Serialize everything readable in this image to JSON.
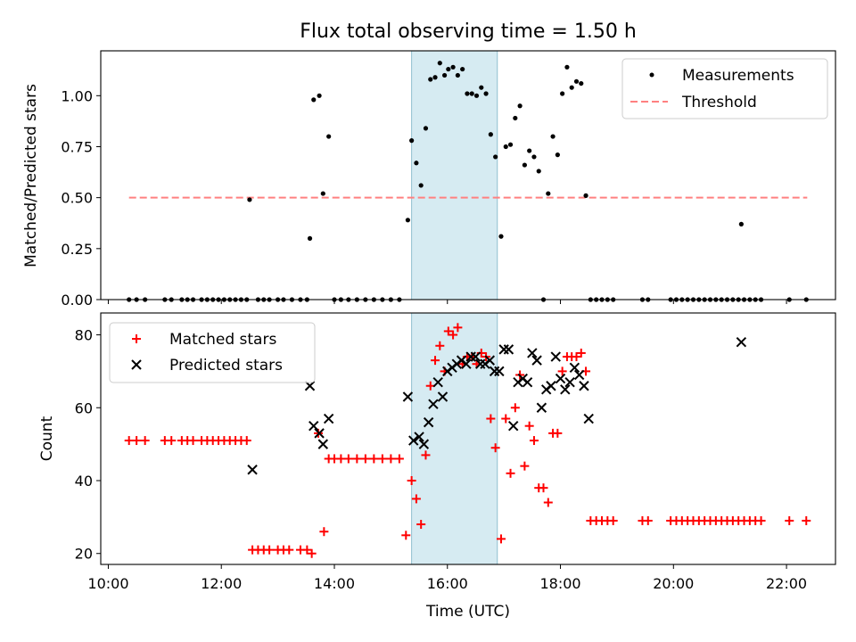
{
  "chart_data": [
    {
      "type": "scatter",
      "title": "Flux total observing time = 1.50 h",
      "xlabel": "",
      "ylabel": "Matched/Predicted stars",
      "xlim": [
        "09:52",
        "22:52"
      ],
      "ylim": [
        0,
        1.22
      ],
      "yticks": [
        "0.00",
        "0.25",
        "0.50",
        "0.75",
        "1.00"
      ],
      "shaded_span": {
        "start": "15:22",
        "end": "16:53",
        "color": "#add8e6"
      },
      "legend": {
        "position": "top-right",
        "entries": [
          "Measurements",
          "Threshold"
        ]
      },
      "threshold": {
        "name": "Threshold",
        "y": 0.5,
        "x_start": "10:22",
        "x_end": "22:22",
        "color": "#ff8080"
      },
      "series": [
        {
          "name": "Measurements",
          "color": "#000000",
          "marker": "dot",
          "points": [
            [
              "10:22",
              0
            ],
            [
              "10:30",
              0
            ],
            [
              "10:39",
              0
            ],
            [
              "11:00",
              0
            ],
            [
              "11:07",
              0
            ],
            [
              "11:18",
              0
            ],
            [
              "11:24",
              0
            ],
            [
              "11:30",
              0
            ],
            [
              "11:39",
              0
            ],
            [
              "11:45",
              0
            ],
            [
              "11:51",
              0
            ],
            [
              "11:57",
              0
            ],
            [
              "12:03",
              0
            ],
            [
              "12:09",
              0
            ],
            [
              "12:15",
              0
            ],
            [
              "12:21",
              0
            ],
            [
              "12:27",
              0
            ],
            [
              "12:30",
              0.49
            ],
            [
              "12:39",
              0
            ],
            [
              "12:45",
              0
            ],
            [
              "12:51",
              0
            ],
            [
              "13:00",
              0
            ],
            [
              "13:06",
              0
            ],
            [
              "13:15",
              0
            ],
            [
              "13:24",
              0
            ],
            [
              "13:31",
              0
            ],
            [
              "13:34",
              0.3
            ],
            [
              "13:38",
              0.98
            ],
            [
              "13:44",
              1.0
            ],
            [
              "13:48",
              0.52
            ],
            [
              "13:54",
              0.8
            ],
            [
              "14:00",
              0
            ],
            [
              "14:07",
              0
            ],
            [
              "14:15",
              0
            ],
            [
              "14:24",
              0
            ],
            [
              "14:33",
              0
            ],
            [
              "14:42",
              0
            ],
            [
              "14:51",
              0
            ],
            [
              "15:00",
              0
            ],
            [
              "15:09",
              0
            ],
            [
              "15:18",
              0.39
            ],
            [
              "15:22",
              0.78
            ],
            [
              "15:27",
              0.67
            ],
            [
              "15:32",
              0.56
            ],
            [
              "15:37",
              0.84
            ],
            [
              "15:42",
              1.08
            ],
            [
              "15:47",
              1.09
            ],
            [
              "15:52",
              1.16
            ],
            [
              "15:57",
              1.1
            ],
            [
              "16:01",
              1.13
            ],
            [
              "16:06",
              1.14
            ],
            [
              "16:11",
              1.1
            ],
            [
              "16:16",
              1.13
            ],
            [
              "16:21",
              1.01
            ],
            [
              "16:26",
              1.01
            ],
            [
              "16:31",
              1.0
            ],
            [
              "16:36",
              1.04
            ],
            [
              "16:41",
              1.01
            ],
            [
              "16:46",
              0.81
            ],
            [
              "16:51",
              0.7
            ],
            [
              "16:57",
              0.31
            ],
            [
              "17:02",
              0.75
            ],
            [
              "17:07",
              0.76
            ],
            [
              "17:12",
              0.89
            ],
            [
              "17:17",
              0.95
            ],
            [
              "17:22",
              0.66
            ],
            [
              "17:27",
              0.73
            ],
            [
              "17:32",
              0.7
            ],
            [
              "17:37",
              0.63
            ],
            [
              "17:42",
              0
            ],
            [
              "17:47",
              0.52
            ],
            [
              "17:52",
              0.8
            ],
            [
              "17:57",
              0.71
            ],
            [
              "18:02",
              1.01
            ],
            [
              "18:07",
              1.14
            ],
            [
              "18:12",
              1.04
            ],
            [
              "18:17",
              1.07
            ],
            [
              "18:22",
              1.06
            ],
            [
              "18:27",
              0.51
            ],
            [
              "18:32",
              0
            ],
            [
              "18:38",
              0
            ],
            [
              "18:44",
              0
            ],
            [
              "18:50",
              0
            ],
            [
              "18:56",
              0
            ],
            [
              "19:27",
              0
            ],
            [
              "19:33",
              0
            ],
            [
              "19:57",
              0
            ],
            [
              "20:03",
              0
            ],
            [
              "20:09",
              0
            ],
            [
              "20:15",
              0
            ],
            [
              "20:21",
              0
            ],
            [
              "20:27",
              0
            ],
            [
              "20:33",
              0
            ],
            [
              "20:39",
              0
            ],
            [
              "20:45",
              0
            ],
            [
              "20:51",
              0
            ],
            [
              "20:57",
              0
            ],
            [
              "21:03",
              0
            ],
            [
              "21:09",
              0
            ],
            [
              "21:12",
              0.37
            ],
            [
              "21:15",
              0
            ],
            [
              "21:21",
              0
            ],
            [
              "21:27",
              0
            ],
            [
              "21:33",
              0
            ],
            [
              "22:03",
              0
            ],
            [
              "22:21",
              0
            ]
          ]
        }
      ]
    },
    {
      "type": "scatter",
      "title": "",
      "xlabel": "Time (UTC)",
      "ylabel": "Count",
      "xlim": [
        "09:52",
        "22:52"
      ],
      "ylim": [
        17,
        86
      ],
      "xticks": [
        "10:00",
        "12:00",
        "14:00",
        "16:00",
        "18:00",
        "20:00",
        "22:00"
      ],
      "yticks": [
        "20",
        "40",
        "60",
        "80"
      ],
      "shaded_span": {
        "start": "15:22",
        "end": "16:53",
        "color": "#add8e6"
      },
      "legend": {
        "position": "top-left",
        "entries": [
          "Matched stars",
          "Predicted stars"
        ]
      },
      "series": [
        {
          "name": "Matched stars",
          "color": "#ff0000",
          "marker": "plus",
          "points": [
            [
              "10:22",
              51
            ],
            [
              "10:30",
              51
            ],
            [
              "10:39",
              51
            ],
            [
              "11:00",
              51
            ],
            [
              "11:07",
              51
            ],
            [
              "11:18",
              51
            ],
            [
              "11:24",
              51
            ],
            [
              "11:30",
              51
            ],
            [
              "11:39",
              51
            ],
            [
              "11:45",
              51
            ],
            [
              "11:51",
              51
            ],
            [
              "11:57",
              51
            ],
            [
              "12:03",
              51
            ],
            [
              "12:09",
              51
            ],
            [
              "12:15",
              51
            ],
            [
              "12:21",
              51
            ],
            [
              "12:27",
              51
            ],
            [
              "12:33",
              21
            ],
            [
              "12:39",
              21
            ],
            [
              "12:45",
              21
            ],
            [
              "12:51",
              21
            ],
            [
              "13:00",
              21
            ],
            [
              "13:06",
              21
            ],
            [
              "13:12",
              21
            ],
            [
              "13:24",
              21
            ],
            [
              "13:31",
              21
            ],
            [
              "13:36",
              20
            ],
            [
              "13:43",
              53
            ],
            [
              "13:49",
              26
            ],
            [
              "13:54",
              46
            ],
            [
              "14:00",
              46
            ],
            [
              "14:07",
              46
            ],
            [
              "14:15",
              46
            ],
            [
              "14:24",
              46
            ],
            [
              "14:33",
              46
            ],
            [
              "14:42",
              46
            ],
            [
              "14:51",
              46
            ],
            [
              "15:00",
              46
            ],
            [
              "15:09",
              46
            ],
            [
              "15:16",
              25
            ],
            [
              "15:22",
              40
            ],
            [
              "15:27",
              35
            ],
            [
              "15:32",
              28
            ],
            [
              "15:37",
              47
            ],
            [
              "15:42",
              66
            ],
            [
              "15:47",
              73
            ],
            [
              "15:52",
              77
            ],
            [
              "15:57",
              70
            ],
            [
              "16:01",
              81
            ],
            [
              "16:06",
              80
            ],
            [
              "16:11",
              82
            ],
            [
              "16:16",
              72
            ],
            [
              "16:21",
              74
            ],
            [
              "16:26",
              74
            ],
            [
              "16:31",
              72
            ],
            [
              "16:36",
              75
            ],
            [
              "16:41",
              74
            ],
            [
              "16:46",
              57
            ],
            [
              "16:51",
              49
            ],
            [
              "16:57",
              24
            ],
            [
              "17:02",
              57
            ],
            [
              "17:07",
              42
            ],
            [
              "17:12",
              60
            ],
            [
              "17:17",
              69
            ],
            [
              "17:22",
              44
            ],
            [
              "17:27",
              55
            ],
            [
              "17:32",
              51
            ],
            [
              "17:37",
              38
            ],
            [
              "17:42",
              38
            ],
            [
              "17:47",
              34
            ],
            [
              "17:52",
              53
            ],
            [
              "17:57",
              53
            ],
            [
              "18:02",
              70
            ],
            [
              "18:07",
              74
            ],
            [
              "18:12",
              74
            ],
            [
              "18:17",
              74
            ],
            [
              "18:22",
              75
            ],
            [
              "18:27",
              70
            ],
            [
              "18:32",
              29
            ],
            [
              "18:38",
              29
            ],
            [
              "18:44",
              29
            ],
            [
              "18:50",
              29
            ],
            [
              "18:56",
              29
            ],
            [
              "19:27",
              29
            ],
            [
              "19:33",
              29
            ],
            [
              "19:57",
              29
            ],
            [
              "20:03",
              29
            ],
            [
              "20:09",
              29
            ],
            [
              "20:15",
              29
            ],
            [
              "20:21",
              29
            ],
            [
              "20:27",
              29
            ],
            [
              "20:33",
              29
            ],
            [
              "20:39",
              29
            ],
            [
              "20:45",
              29
            ],
            [
              "20:51",
              29
            ],
            [
              "20:57",
              29
            ],
            [
              "21:03",
              29
            ],
            [
              "21:09",
              29
            ],
            [
              "21:15",
              29
            ],
            [
              "21:21",
              29
            ],
            [
              "21:27",
              29
            ],
            [
              "21:33",
              29
            ],
            [
              "22:03",
              29
            ],
            [
              "22:21",
              29
            ]
          ]
        },
        {
          "name": "Predicted stars",
          "color": "#000000",
          "marker": "x",
          "points": [
            [
              "12:33",
              43
            ],
            [
              "13:34",
              66
            ],
            [
              "13:38",
              55
            ],
            [
              "13:44",
              53
            ],
            [
              "13:48",
              50
            ],
            [
              "13:54",
              57
            ],
            [
              "15:18",
              63
            ],
            [
              "15:24",
              51
            ],
            [
              "15:30",
              52
            ],
            [
              "15:35",
              50
            ],
            [
              "15:40",
              56
            ],
            [
              "15:45",
              61
            ],
            [
              "15:50",
              67
            ],
            [
              "15:55",
              63
            ],
            [
              "16:00",
              70
            ],
            [
              "16:05",
              71
            ],
            [
              "16:10",
              72
            ],
            [
              "16:15",
              73
            ],
            [
              "16:20",
              72
            ],
            [
              "16:25",
              74
            ],
            [
              "16:30",
              74
            ],
            [
              "16:35",
              72
            ],
            [
              "16:40",
              72
            ],
            [
              "16:45",
              73
            ],
            [
              "16:50",
              70
            ],
            [
              "16:55",
              70
            ],
            [
              "17:00",
              76
            ],
            [
              "17:05",
              76
            ],
            [
              "17:10",
              55
            ],
            [
              "17:15",
              67
            ],
            [
              "17:20",
              68
            ],
            [
              "17:25",
              67
            ],
            [
              "17:30",
              75
            ],
            [
              "17:35",
              73
            ],
            [
              "17:40",
              60
            ],
            [
              "17:45",
              65
            ],
            [
              "17:50",
              66
            ],
            [
              "17:55",
              74
            ],
            [
              "18:00",
              68
            ],
            [
              "18:05",
              65
            ],
            [
              "18:10",
              67
            ],
            [
              "18:15",
              71
            ],
            [
              "18:20",
              69
            ],
            [
              "18:25",
              66
            ],
            [
              "18:30",
              57
            ],
            [
              "21:12",
              78
            ]
          ]
        }
      ]
    }
  ]
}
